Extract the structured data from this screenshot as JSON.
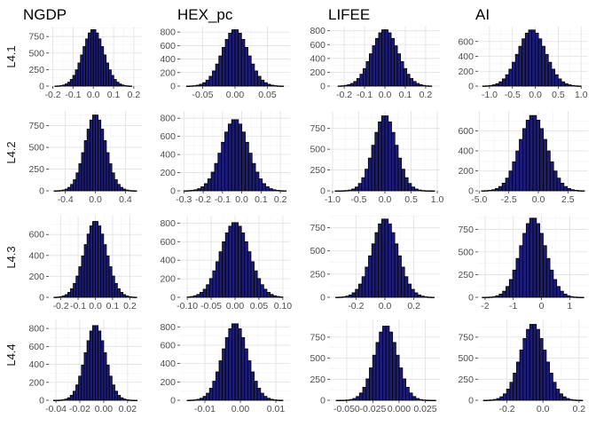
{
  "chart_data": {
    "type": "bar",
    "layout": "facet-grid",
    "bar_fill": "#1c1c78",
    "bar_outline": "#000000",
    "grid": true,
    "columns": [
      "NGDP",
      "HEX_pc",
      "LIFEE",
      "AI"
    ],
    "rows": [
      "L4.1",
      "L4.2",
      "L4.3",
      "L4.4"
    ],
    "panels": [
      {
        "name": "ngdp-l41",
        "xlim": [
          -0.22,
          0.24
        ],
        "ylim": [
          0,
          900
        ],
        "xticks": [
          -0.2,
          -0.1,
          0.0,
          0.1,
          0.2
        ],
        "xtick_labels": [
          "-0.2",
          "-0.1",
          "0.0",
          "0.1",
          "0.2"
        ],
        "yticks": [
          0,
          250,
          500,
          750
        ],
        "ytick_labels": [
          "0",
          "250",
          "500",
          "750"
        ],
        "bins": [
          -0.19,
          0.19
        ],
        "peak": 860,
        "sd": 0.052
      },
      {
        "name": "hex-l41",
        "xlim": [
          -0.085,
          0.085
        ],
        "ylim": [
          0,
          880
        ],
        "xticks": [
          -0.05,
          0.0,
          0.05
        ],
        "xtick_labels": [
          "-0.05",
          "0.00",
          "0.05"
        ],
        "yticks": [
          0,
          200,
          400,
          600,
          800
        ],
        "ytick_labels": [
          "0",
          "200",
          "400",
          "600",
          "800"
        ],
        "bins": [
          -0.075,
          0.075
        ],
        "peak": 840,
        "sd": 0.02
      },
      {
        "name": "lifee-l41",
        "xlim": [
          -0.27,
          0.27
        ],
        "ylim": [
          0,
          860
        ],
        "xticks": [
          -0.2,
          -0.1,
          0.0,
          0.1,
          0.2
        ],
        "xtick_labels": [
          "-0.2",
          "-0.1",
          "0.0",
          "0.1",
          "0.2"
        ],
        "yticks": [
          0,
          200,
          400,
          600,
          800
        ],
        "ytick_labels": [
          "0",
          "200",
          "400",
          "600",
          "800"
        ],
        "bins": [
          -0.23,
          0.23
        ],
        "peak": 820,
        "sd": 0.065
      },
      {
        "name": "ai-l41",
        "xlim": [
          -1.25,
          1.15
        ],
        "ylim": [
          0,
          800
        ],
        "xticks": [
          -1.0,
          -0.5,
          0.0,
          0.5,
          1.0
        ],
        "xtick_labels": [
          "-1.0",
          "-0.5",
          "0.0",
          "0.5",
          "1.0"
        ],
        "yticks": [
          0,
          200,
          400,
          600
        ],
        "ytick_labels": [
          "0",
          "200",
          "400",
          "600"
        ],
        "bins": [
          -1.15,
          1.0
        ],
        "peak": 760,
        "sd": 0.3
      },
      {
        "name": "ngdp-l42",
        "xlim": [
          -0.62,
          0.62
        ],
        "ylim": [
          0,
          920
        ],
        "xticks": [
          -0.4,
          0.0,
          0.4
        ],
        "xtick_labels": [
          "-0.4",
          "0.0",
          "0.4"
        ],
        "yticks": [
          0,
          250,
          500,
          750
        ],
        "ytick_labels": [
          "0",
          "250",
          "500",
          "750"
        ],
        "bins": [
          -0.55,
          0.55
        ],
        "peak": 880,
        "sd": 0.14
      },
      {
        "name": "hex-l42",
        "xlim": [
          -0.32,
          0.25
        ],
        "ylim": [
          0,
          880
        ],
        "xticks": [
          -0.3,
          -0.2,
          -0.1,
          0.0,
          0.1,
          0.2
        ],
        "xtick_labels": [
          "-0.3",
          "-0.2",
          "-0.1",
          "0.0",
          "0.1",
          "0.2"
        ],
        "yticks": [
          0,
          200,
          400,
          600,
          800
        ],
        "ytick_labels": [
          "0",
          "200",
          "400",
          "600",
          "800"
        ],
        "bins": [
          -0.3,
          0.23
        ],
        "peak": 790,
        "sd": 0.07
      },
      {
        "name": "lifee-l42",
        "xlim": [
          -1.05,
          1.05
        ],
        "ylim": [
          0,
          960
        ],
        "xticks": [
          -1.0,
          -0.5,
          0.0,
          0.5,
          1.0
        ],
        "xtick_labels": [
          "-1.0",
          "-0.5",
          "0.0",
          "0.5",
          "1.0"
        ],
        "yticks": [
          0,
          250,
          500,
          750
        ],
        "ytick_labels": [
          "0",
          "250",
          "500",
          "750"
        ],
        "bins": [
          -0.95,
          0.95
        ],
        "peak": 910,
        "sd": 0.22
      },
      {
        "name": "ai-l42",
        "xlim": [
          -5.1,
          4.2
        ],
        "ylim": [
          0,
          800
        ],
        "xticks": [
          -5.0,
          -2.5,
          0.0,
          2.5
        ],
        "xtick_labels": [
          "-5.0",
          "-2.5",
          "0.0",
          "2.5"
        ],
        "yticks": [
          0,
          200,
          400,
          600
        ],
        "ytick_labels": [
          "0",
          "200",
          "400",
          "600"
        ],
        "bins": [
          -4.8,
          3.9
        ],
        "peak": 760,
        "sd": 1.15
      },
      {
        "name": "ngdp-l43",
        "xlim": [
          -0.27,
          0.27
        ],
        "ylim": [
          0,
          780
        ],
        "xticks": [
          -0.2,
          -0.1,
          0.0,
          0.1,
          0.2
        ],
        "xtick_labels": [
          "-0.2",
          "-0.1",
          "0.0",
          "0.1",
          "0.2"
        ],
        "yticks": [
          0,
          200,
          400,
          600
        ],
        "ytick_labels": [
          "0",
          "200",
          "400",
          "600"
        ],
        "bins": [
          -0.24,
          0.24
        ],
        "peak": 730,
        "sd": 0.065
      },
      {
        "name": "hex-l43",
        "xlim": [
          -0.115,
          0.115
        ],
        "ylim": [
          0,
          880
        ],
        "xticks": [
          -0.1,
          -0.05,
          0.0,
          0.05,
          0.1
        ],
        "xtick_labels": [
          "-0.10",
          "-0.05",
          "0.00",
          "0.05",
          "0.10"
        ],
        "yticks": [
          0,
          200,
          400,
          600,
          800
        ],
        "ytick_labels": [
          "0",
          "200",
          "400",
          "600",
          "800"
        ],
        "bins": [
          -0.1,
          0.1
        ],
        "peak": 810,
        "sd": 0.03
      },
      {
        "name": "lifee-l43",
        "xlim": [
          -0.38,
          0.38
        ],
        "ylim": [
          0,
          880
        ],
        "xticks": [
          -0.2,
          0.0,
          0.2
        ],
        "xtick_labels": [
          "-0.2",
          "0.0",
          "0.2"
        ],
        "yticks": [
          0,
          250,
          500,
          750
        ],
        "ytick_labels": [
          "0",
          "250",
          "500",
          "750"
        ],
        "bins": [
          -0.34,
          0.34
        ],
        "peak": 850,
        "sd": 0.09
      },
      {
        "name": "ai-l43",
        "xlim": [
          -2.25,
          1.65
        ],
        "ylim": [
          0,
          900
        ],
        "xticks": [
          -2,
          -1,
          0,
          1
        ],
        "xtick_labels": [
          "-2",
          "-1",
          "0",
          "1"
        ],
        "yticks": [
          0,
          250,
          500,
          750
        ],
        "ytick_labels": [
          "0",
          "250",
          "500",
          "750"
        ],
        "bins": [
          -2.1,
          1.5
        ],
        "peak": 880,
        "sd": 0.45
      },
      {
        "name": "ngdp-l44",
        "xlim": [
          -0.046,
          0.032
        ],
        "ylim": [
          0,
          900
        ],
        "xticks": [
          -0.04,
          -0.02,
          0.0,
          0.02
        ],
        "xtick_labels": [
          "-0.04",
          "-0.02",
          "0.00",
          "0.02"
        ],
        "yticks": [
          0,
          200,
          400,
          600,
          800
        ],
        "ytick_labels": [
          "0",
          "200",
          "400",
          "600",
          "800"
        ],
        "bins": [
          -0.042,
          0.028
        ],
        "peak": 840,
        "sd": 0.0085
      },
      {
        "name": "hex-l44",
        "xlim": [
          -0.017,
          0.014
        ],
        "ylim": [
          0,
          880
        ],
        "xticks": [
          -0.01,
          0.0,
          0.01
        ],
        "xtick_labels": [
          "-0.01",
          "0.00",
          "0.01"
        ],
        "yticks": [
          0,
          200,
          400,
          600,
          800
        ],
        "ytick_labels": [
          "0",
          "200",
          "400",
          "600",
          "800"
        ],
        "bins": [
          -0.015,
          0.012
        ],
        "peak": 840,
        "sd": 0.0035
      },
      {
        "name": "lifee-l44",
        "xlim": [
          -0.066,
          0.039
        ],
        "ylim": [
          0,
          960
        ],
        "xticks": [
          -0.05,
          -0.025,
          0.0,
          0.025
        ],
        "xtick_labels": [
          "-0.050",
          "-0.025",
          "0.000",
          "0.025"
        ],
        "yticks": [
          0,
          250,
          500,
          750
        ],
        "ytick_labels": [
          "0",
          "250",
          "500",
          "750"
        ],
        "bins": [
          -0.06,
          0.035
        ],
        "peak": 890,
        "sd": 0.011
      },
      {
        "name": "ai-l44",
        "xlim": [
          -0.36,
          0.25
        ],
        "ylim": [
          0,
          960
        ],
        "xticks": [
          -0.2,
          0.0,
          0.2
        ],
        "xtick_labels": [
          "-0.2",
          "0.0",
          "0.2"
        ],
        "yticks": [
          0,
          250,
          500,
          750
        ],
        "ytick_labels": [
          "0",
          "250",
          "500",
          "750"
        ],
        "bins": [
          -0.33,
          0.22
        ],
        "peak": 910,
        "sd": 0.07
      }
    ]
  }
}
